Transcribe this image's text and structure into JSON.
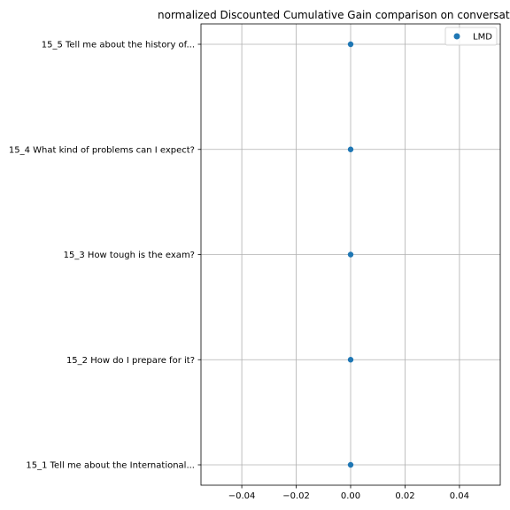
{
  "chart_data": {
    "type": "scatter",
    "title": "normalized Discounted Cumulative Gain comparison on conversat",
    "xlabel": "",
    "ylabel": "",
    "xlim": [
      -0.055,
      0.055
    ],
    "xticks": [
      -0.04,
      -0.02,
      0.0,
      0.02,
      0.04
    ],
    "xtick_labels": [
      "−0.04",
      "−0.02",
      "0.00",
      "0.02",
      "0.04"
    ],
    "categories": [
      "15_1 Tell me about the International...",
      "15_2 How do I prepare for it?",
      "15_3 How tough is the exam?",
      "15_4 What kind of problems can I expect?",
      "15_5 Tell me about the history of..."
    ],
    "grid": true,
    "legend_position": "top-right",
    "series": [
      {
        "name": "LMD",
        "color": "#1f77b4",
        "points": [
          {
            "category": "15_1 Tell me about the International...",
            "x": 0.0
          },
          {
            "category": "15_2 How do I prepare for it?",
            "x": 0.0
          },
          {
            "category": "15_3 How tough is the exam?",
            "x": 0.0
          },
          {
            "category": "15_4 What kind of problems can I expect?",
            "x": 0.0
          },
          {
            "category": "15_5 Tell me about the history of...",
            "x": 0.0
          }
        ]
      }
    ]
  }
}
